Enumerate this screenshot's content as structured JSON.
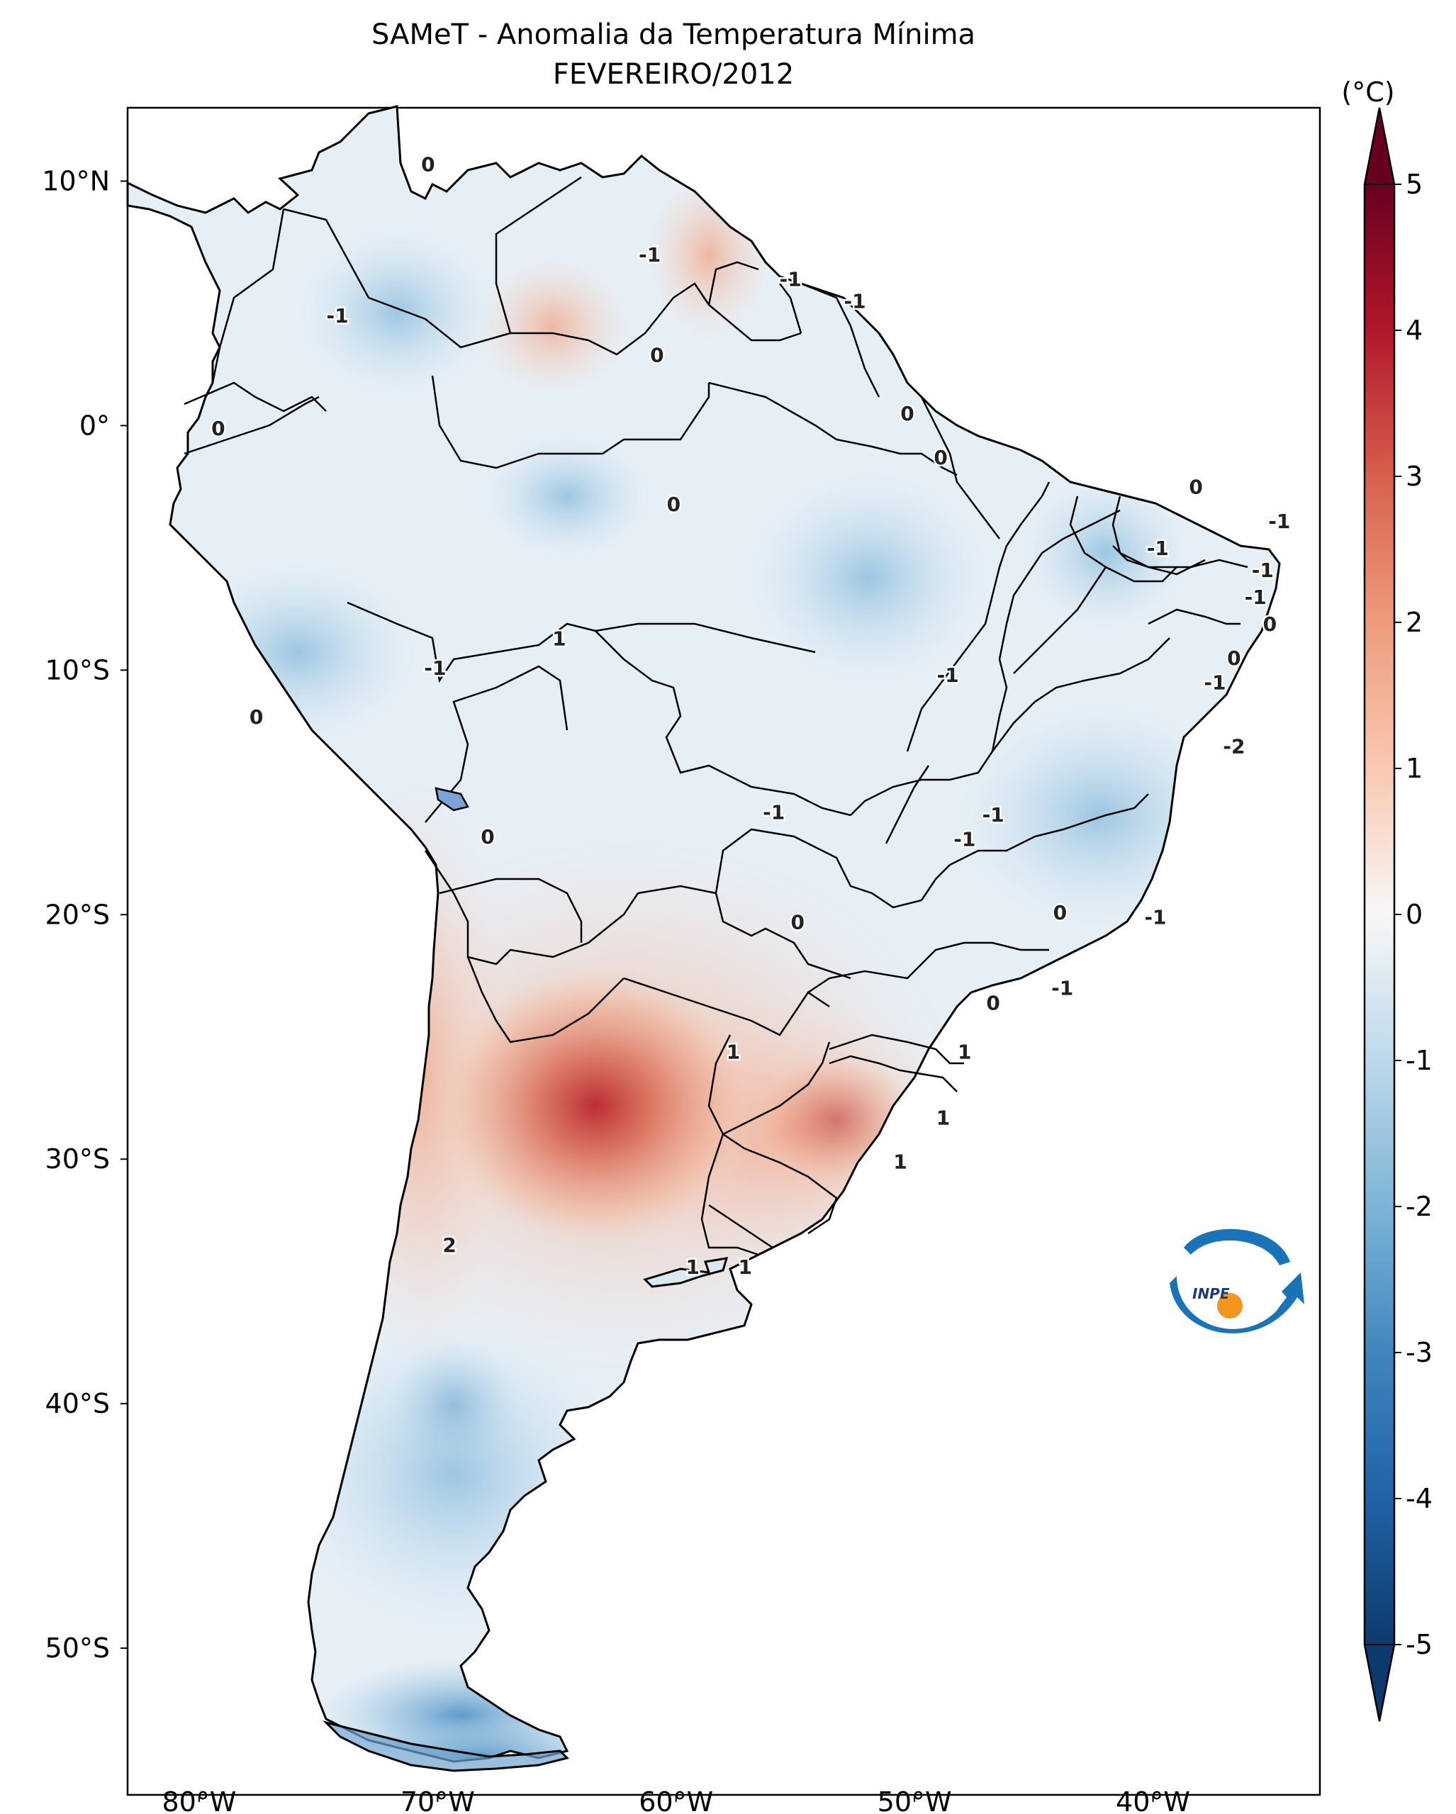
{
  "title": "SAMeT - Anomalia da Temperatura Mínima",
  "subtitle": "FEVEREIRO/2012",
  "unit": "(°C)",
  "lat_ticks": [
    "10°N",
    "0°",
    "10°S",
    "20°S",
    "30°S",
    "40°S",
    "50°S"
  ],
  "lon_ticks": [
    "80°W",
    "70°W",
    "60°W",
    "50°W",
    "40°W"
  ],
  "colorbar": {
    "ticks": [
      "5",
      "4",
      "3",
      "2",
      "1",
      "0",
      "-1",
      "-2",
      "-3",
      "-4",
      "-5"
    ],
    "min": -5,
    "max": 5,
    "colormap": "RdBu_r",
    "colors": {
      "neg5": "#0d3a6e",
      "neg3": "#3f86bf",
      "neg1": "#cde3f0",
      "zero": "#f7f7f7",
      "pos1": "#f6d3c0",
      "pos3": "#d6604d",
      "pos5": "#67001f"
    }
  },
  "map_extent": {
    "lon_min": -83,
    "lon_max": -33,
    "lat_min": -56,
    "lat_max": 13
  },
  "contour_labels": [
    {
      "text": "0",
      "lon": -70.4,
      "lat": 10.7
    },
    {
      "text": "-1",
      "lon": -74.2,
      "lat": 4.5
    },
    {
      "text": "0",
      "lon": -60.8,
      "lat": 2.9
    },
    {
      "text": "-1",
      "lon": -61.1,
      "lat": 7.0
    },
    {
      "text": "-1",
      "lon": -55.2,
      "lat": 6.0
    },
    {
      "text": "-1",
      "lon": -52.5,
      "lat": 5.1
    },
    {
      "text": "0",
      "lon": -50.3,
      "lat": 0.5
    },
    {
      "text": "0",
      "lon": -48.9,
      "lat": -1.3
    },
    {
      "text": "0",
      "lon": -79.2,
      "lat": -0.1
    },
    {
      "text": "0",
      "lon": -60.1,
      "lat": -3.2
    },
    {
      "text": "0",
      "lon": -38.2,
      "lat": -2.5
    },
    {
      "text": "-1",
      "lon": -34.7,
      "lat": -3.9
    },
    {
      "text": "-1",
      "lon": -39.8,
      "lat": -5.0
    },
    {
      "text": "-1",
      "lon": -35.4,
      "lat": -5.9
    },
    {
      "text": "-1",
      "lon": -35.7,
      "lat": -7.0
    },
    {
      "text": "0",
      "lon": -35.1,
      "lat": -8.1
    },
    {
      "text": "0",
      "lon": -36.6,
      "lat": -9.5
    },
    {
      "text": "-1",
      "lon": -37.4,
      "lat": -10.5
    },
    {
      "text": "1",
      "lon": -64.9,
      "lat": -8.7
    },
    {
      "text": "-1",
      "lon": -70.1,
      "lat": -9.9
    },
    {
      "text": "-1",
      "lon": -48.6,
      "lat": -10.2
    },
    {
      "text": "0",
      "lon": -77.6,
      "lat": -11.9
    },
    {
      "text": "-2",
      "lon": -36.6,
      "lat": -13.1
    },
    {
      "text": "-1",
      "lon": -55.9,
      "lat": -15.8
    },
    {
      "text": "-1",
      "lon": -46.7,
      "lat": -15.9
    },
    {
      "text": "-1",
      "lon": -47.9,
      "lat": -16.9
    },
    {
      "text": "0",
      "lon": -67.9,
      "lat": -16.8
    },
    {
      "text": "0",
      "lon": -54.9,
      "lat": -20.3
    },
    {
      "text": "0",
      "lon": -43.9,
      "lat": -19.9
    },
    {
      "text": "-1",
      "lon": -39.9,
      "lat": -20.1
    },
    {
      "text": "-1",
      "lon": -43.8,
      "lat": -23.0
    },
    {
      "text": "0",
      "lon": -46.7,
      "lat": -23.6
    },
    {
      "text": "1",
      "lon": -57.6,
      "lat": -25.6
    },
    {
      "text": "1",
      "lon": -47.9,
      "lat": -25.6
    },
    {
      "text": "1",
      "lon": -48.8,
      "lat": -28.3
    },
    {
      "text": "1",
      "lon": -50.6,
      "lat": -30.1
    },
    {
      "text": "2",
      "lon": -69.5,
      "lat": -33.5
    },
    {
      "text": "1",
      "lon": -59.3,
      "lat": -34.4
    },
    {
      "text": "1",
      "lon": -57.1,
      "lat": -34.4
    }
  ],
  "logo": {
    "text": "INPE",
    "blue": "#1a72b8",
    "orange": "#f29620"
  }
}
